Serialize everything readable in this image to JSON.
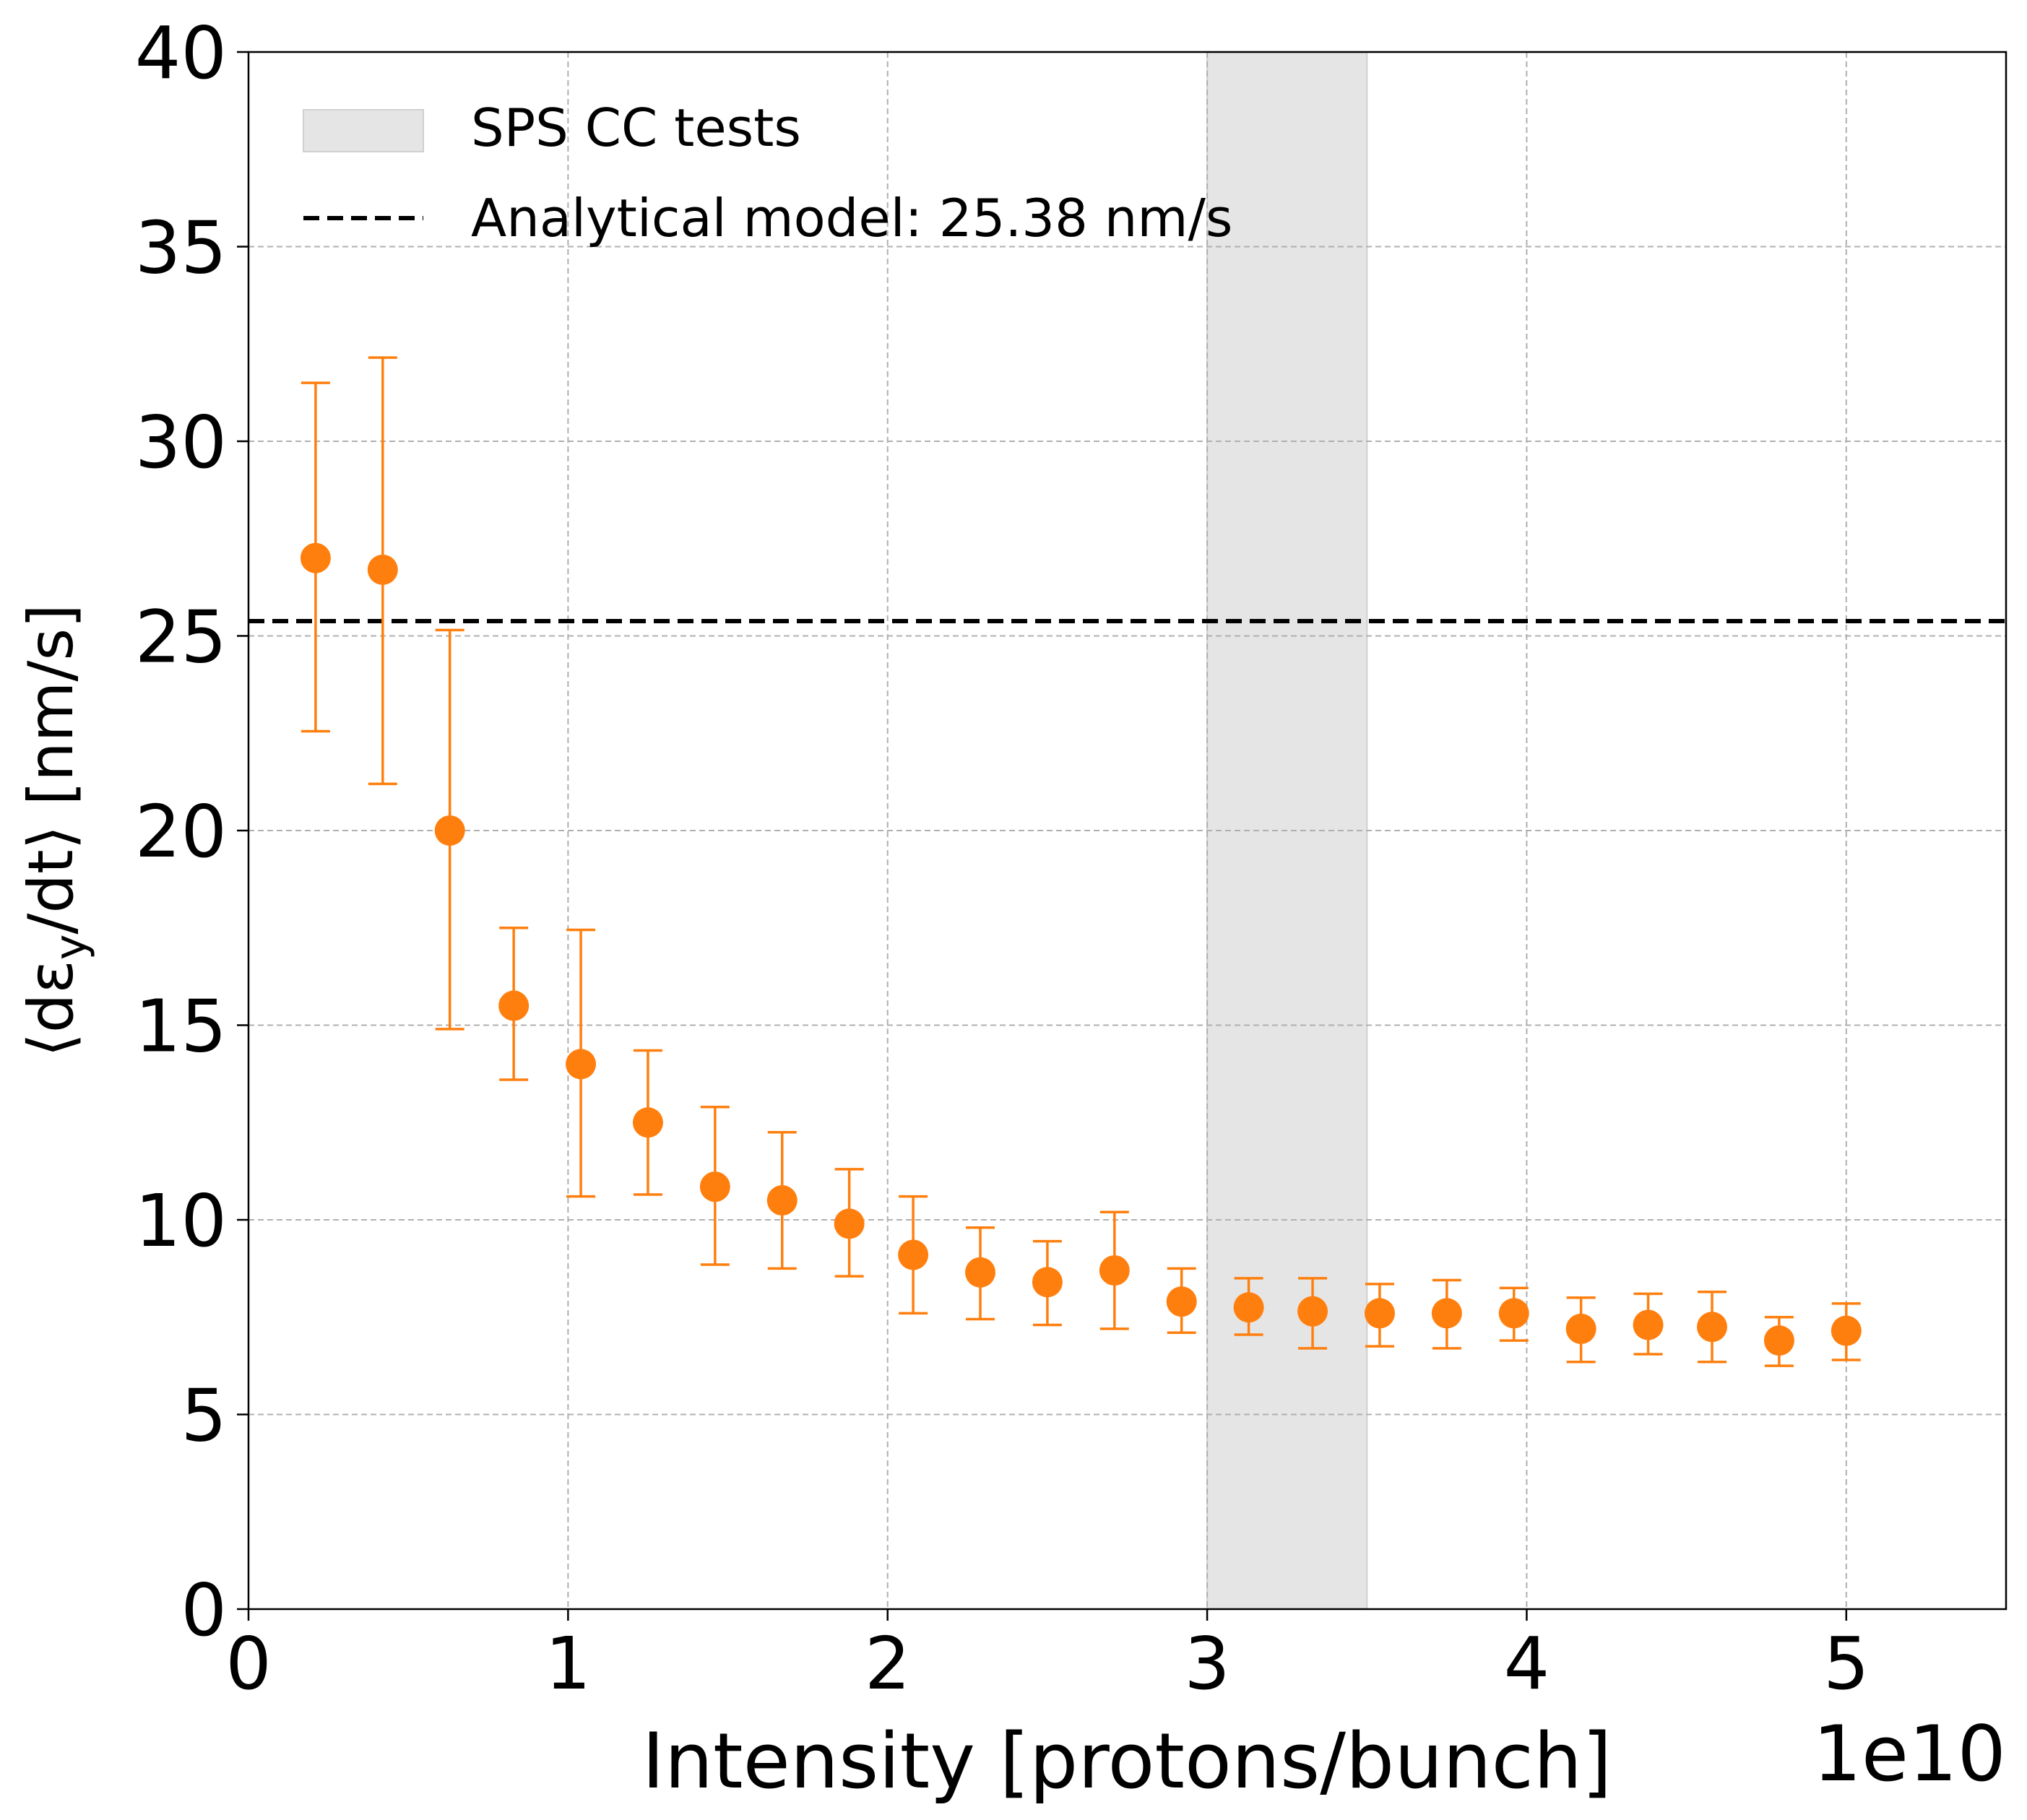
{
  "chart_data": {
    "type": "scatter",
    "xlabel": "Intensity [protons/bunch]",
    "ylabel_prefix": "⟨dε",
    "ylabel_sub": "y",
    "ylabel_suffix": "/dt⟩ [nm/s]",
    "x_offset_text": "1e10",
    "xlim": [
      0,
      5.5
    ],
    "ylim": [
      0,
      40
    ],
    "x_scale": "1e10",
    "xticks": [
      0,
      1,
      2,
      3,
      4,
      5
    ],
    "xtick_labels": [
      "0",
      "1",
      "2",
      "3",
      "4",
      "5"
    ],
    "yticks": [
      0,
      5,
      10,
      15,
      20,
      25,
      30,
      35,
      40
    ],
    "ytick_labels": [
      "0",
      "5",
      "10",
      "15",
      "20",
      "25",
      "30",
      "35",
      "40"
    ],
    "grid": true,
    "legend_position": "top-left",
    "colors": {
      "points": "#ff7f0e",
      "band": "#d9d9d9",
      "model_line": "#000000",
      "grid": "#b0b0b0"
    },
    "band": {
      "label": "SPS CC tests",
      "x_range": [
        3.0,
        3.5
      ]
    },
    "model_line": {
      "label": "Analytical model: 25.38 nm/s",
      "y": 25.38
    },
    "series": [
      {
        "x": [
          0.21,
          0.42,
          0.63,
          0.83,
          1.04,
          1.25,
          1.46,
          1.67,
          1.88,
          2.08,
          2.29,
          2.5,
          2.71,
          2.92,
          3.13,
          3.33,
          3.54,
          3.75,
          3.96,
          4.17,
          4.38,
          4.58,
          4.79,
          5.0
        ],
        "y": [
          27.0,
          26.7,
          20.0,
          15.5,
          14.0,
          12.5,
          10.85,
          10.5,
          9.9,
          9.1,
          8.65,
          8.4,
          8.7,
          7.9,
          7.75,
          7.65,
          7.6,
          7.6,
          7.6,
          7.2,
          7.3,
          7.25,
          6.9,
          7.15
        ],
        "y_lower": [
          22.55,
          21.2,
          14.9,
          13.6,
          10.6,
          10.65,
          8.85,
          8.75,
          8.55,
          7.6,
          7.45,
          7.3,
          7.2,
          7.1,
          7.05,
          6.7,
          6.75,
          6.7,
          6.9,
          6.35,
          6.55,
          6.35,
          6.25,
          6.4
        ],
        "y_upper": [
          31.5,
          32.15,
          25.15,
          17.5,
          17.45,
          14.35,
          12.9,
          12.25,
          11.3,
          10.6,
          9.8,
          9.45,
          10.2,
          8.75,
          8.5,
          8.5,
          8.35,
          8.45,
          8.25,
          8.0,
          8.1,
          8.15,
          7.5,
          7.85
        ]
      }
    ]
  }
}
